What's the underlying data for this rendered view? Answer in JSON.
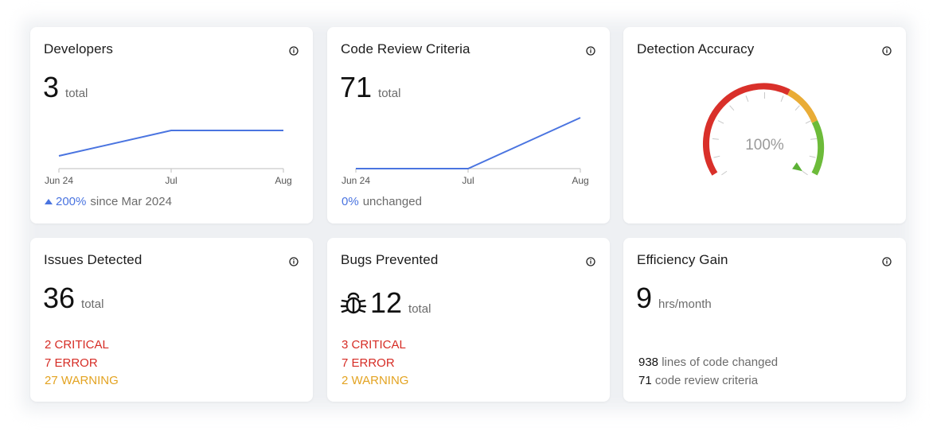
{
  "developers": {
    "title": "Developers",
    "value": "3",
    "unit": "total",
    "chart_data": {
      "type": "line",
      "categories": [
        "Jun 24",
        "Jul",
        "Aug"
      ],
      "values": [
        1,
        3,
        3
      ],
      "ylim": [
        0,
        4
      ]
    },
    "change_value": "200%",
    "change_text": "since Mar 2024"
  },
  "code_review": {
    "title": "Code Review Criteria",
    "value": "71",
    "unit": "total",
    "chart_data": {
      "type": "line",
      "categories": [
        "Jun 24",
        "Jul",
        "Aug"
      ],
      "values": [
        0,
        0,
        71
      ],
      "ylim": [
        0,
        71
      ]
    },
    "change_value": "0%",
    "change_text": "unchanged"
  },
  "detection_accuracy": {
    "title": "Detection Accuracy",
    "value": "100%",
    "gauge_fraction": 1.0
  },
  "issues": {
    "title": "Issues Detected",
    "value": "36",
    "unit": "total",
    "critical": "2 CRITICAL",
    "error": "7 ERROR",
    "warning": "27 WARNING"
  },
  "bugs": {
    "title": "Bugs Prevented",
    "value": "12",
    "unit": "total",
    "critical": "3 CRITICAL",
    "error": "7 ERROR",
    "warning": "2 WARNING"
  },
  "efficiency": {
    "title": "Efficiency Gain",
    "value": "9",
    "unit": "hrs/month",
    "lines_num": "938",
    "lines_text": "lines of code changed",
    "criteria_num": "71",
    "criteria_text": "code review criteria"
  },
  "colors": {
    "accent_blue": "#4a74e0",
    "critical": "#d62c25",
    "warning": "#e3a321",
    "ok": "#6dbb3a"
  },
  "icons": {
    "info": "info-icon",
    "bug": "bug-icon",
    "trend_up": "triangle-up-icon"
  }
}
